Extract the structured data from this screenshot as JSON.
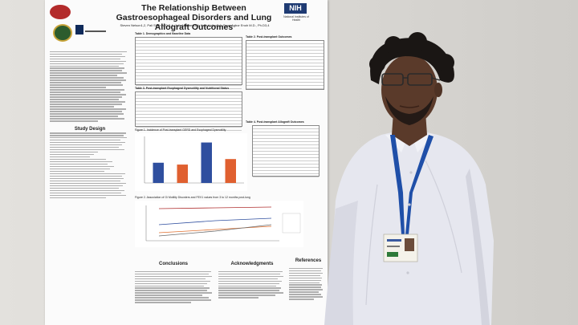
{
  "poster": {
    "title": "The Relationship Between Gastroesophageal Disorders and Lung Allograft Outcomes",
    "authors": "Steven Nelson1,2, Pali Shah M.D.3,4, Jolly Matthew3,4, Kent Kelley3,4, Sean Agbor Enoh M.D., Ph.D3,4",
    "nih": "NIH",
    "nih_sub": "National Institutes of Health",
    "sections": {
      "study_design": "Study Design",
      "conclusions": "Conclusions",
      "acknowledgments": "Acknowledgments",
      "references": "References"
    },
    "figures": {
      "fig1": "Figure 1. Incidence of Post-transplant GERD and Esophageal Dysmotility",
      "fig2": "Figure 2. Association of Gi Motility Disorders and FEV1 values from 3 to 12 months post-lung",
      "tbl1": "Table 1. Demographics and Baseline Data",
      "tbl2": "Table 2. Post-transplant Outcomes",
      "tbl3": "Table 3. Post-transplant Esophageal Dysmotility and Nutritional Status",
      "tbl4": "Table 4. Post-transplant Allograft Outcomes"
    }
  },
  "chart_data": {
    "type": "bar",
    "categories": [
      "",
      "",
      "",
      ""
    ],
    "values": [
      11,
      10,
      22,
      13
    ],
    "colors": [
      "#2f4f9f",
      "#e06030",
      "#2f4f9f",
      "#e06030"
    ]
  },
  "colors": {
    "shirt": "#e6e7ef",
    "lanyard": "#1f4fa8",
    "skin": "#5a3a2a",
    "hair": "#1a1614"
  }
}
